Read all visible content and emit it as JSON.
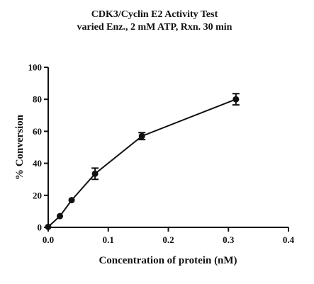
{
  "chart_data": {
    "type": "scatter",
    "title": "CDK3/Cyclin E2 Activity Test",
    "subtitle": "varied Enz., 2 mM ATP, Rxn. 30 min",
    "xlabel": "Concentration of protein (nM)",
    "ylabel": "% Conversion",
    "xlim": [
      0,
      0.4
    ],
    "ylim": [
      0,
      100
    ],
    "xticks": [
      0.0,
      0.1,
      0.2,
      0.3,
      0.4
    ],
    "xtick_labels": [
      "0.0",
      "0.1",
      "0.2",
      "0.3",
      "0.4"
    ],
    "yticks": [
      0,
      20,
      40,
      60,
      80,
      100
    ],
    "ytick_labels": [
      "0",
      "20",
      "40",
      "60",
      "80",
      "100"
    ],
    "grid": false,
    "legend": "none",
    "connected": true,
    "color": "#111111",
    "series": [
      {
        "x": [
          0.0,
          0.0195,
          0.039,
          0.078,
          0.156,
          0.3125
        ],
        "y": [
          0.3,
          7,
          17,
          33.5,
          57,
          80
        ],
        "error": [
          0.5,
          0.8,
          0.8,
          3.5,
          2.2,
          3.5
        ]
      }
    ]
  }
}
